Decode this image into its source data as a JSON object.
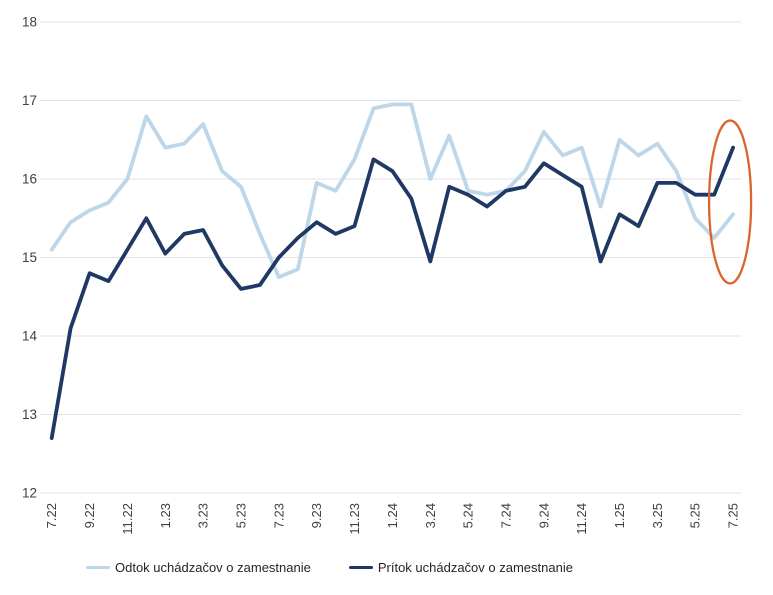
{
  "chart_data": {
    "type": "line",
    "title": "",
    "xlabel": "",
    "ylabel": "",
    "ylim": [
      12,
      18
    ],
    "y_ticks": [
      12,
      13,
      14,
      15,
      16,
      17,
      18
    ],
    "grid": true,
    "legend_position": "bottom",
    "x_tick_step": 2,
    "x": [
      "7.22",
      "8.22",
      "9.22",
      "10.22",
      "11.22",
      "12.22",
      "1.23",
      "2.23",
      "3.23",
      "4.23",
      "5.23",
      "6.23",
      "7.23",
      "8.23",
      "9.23",
      "10.23",
      "11.23",
      "12.23",
      "1.24",
      "2.24",
      "3.24",
      "4.24",
      "5.24",
      "6.24",
      "7.24",
      "8.24",
      "9.24",
      "10.24",
      "11.24",
      "12.24",
      "1.25",
      "2.25",
      "3.25",
      "4.25",
      "5.25",
      "6.25",
      "7.25"
    ],
    "x_tick_labels_shown": [
      "7.22",
      "9.22",
      "11.22",
      "1.23",
      "3.23",
      "5.23",
      "7.23",
      "9.23",
      "11.23",
      "1.24",
      "3.24",
      "5.24",
      "7.24",
      "9.24",
      "11.24",
      "1.25",
      "3.25",
      "5.25",
      "7.25"
    ],
    "series": [
      {
        "name": "Odtok uchádzačov o zamestnanie",
        "color": "#BDD6E8",
        "values": [
          15.1,
          15.45,
          15.6,
          15.7,
          16.0,
          16.8,
          16.4,
          16.45,
          16.7,
          16.1,
          15.9,
          15.3,
          14.75,
          14.85,
          15.95,
          15.85,
          16.25,
          16.9,
          16.95,
          16.95,
          16.0,
          16.55,
          15.85,
          15.8,
          15.85,
          16.1,
          16.6,
          16.3,
          16.4,
          15.65,
          16.5,
          16.3,
          16.45,
          16.1,
          15.5,
          15.25,
          15.55
        ]
      },
      {
        "name": "Prítok uchádzačov o zamestnanie",
        "color": "#1F3864",
        "values": [
          12.7,
          14.1,
          14.8,
          14.7,
          15.1,
          15.5,
          15.05,
          15.3,
          15.35,
          14.9,
          14.6,
          14.65,
          15.0,
          15.25,
          15.45,
          15.3,
          15.4,
          16.25,
          16.1,
          15.75,
          14.95,
          15.9,
          15.8,
          15.65,
          15.85,
          15.9,
          16.2,
          16.05,
          15.9,
          14.95,
          15.55,
          15.4,
          15.95,
          15.95,
          15.8,
          15.8,
          16.4
        ]
      }
    ],
    "annotation": {
      "shape": "ellipse",
      "at_x_label": "7.25",
      "color": "#D9652F"
    },
    "axis_label_color": "#404040",
    "gridline_color": "#E3E3E3"
  }
}
